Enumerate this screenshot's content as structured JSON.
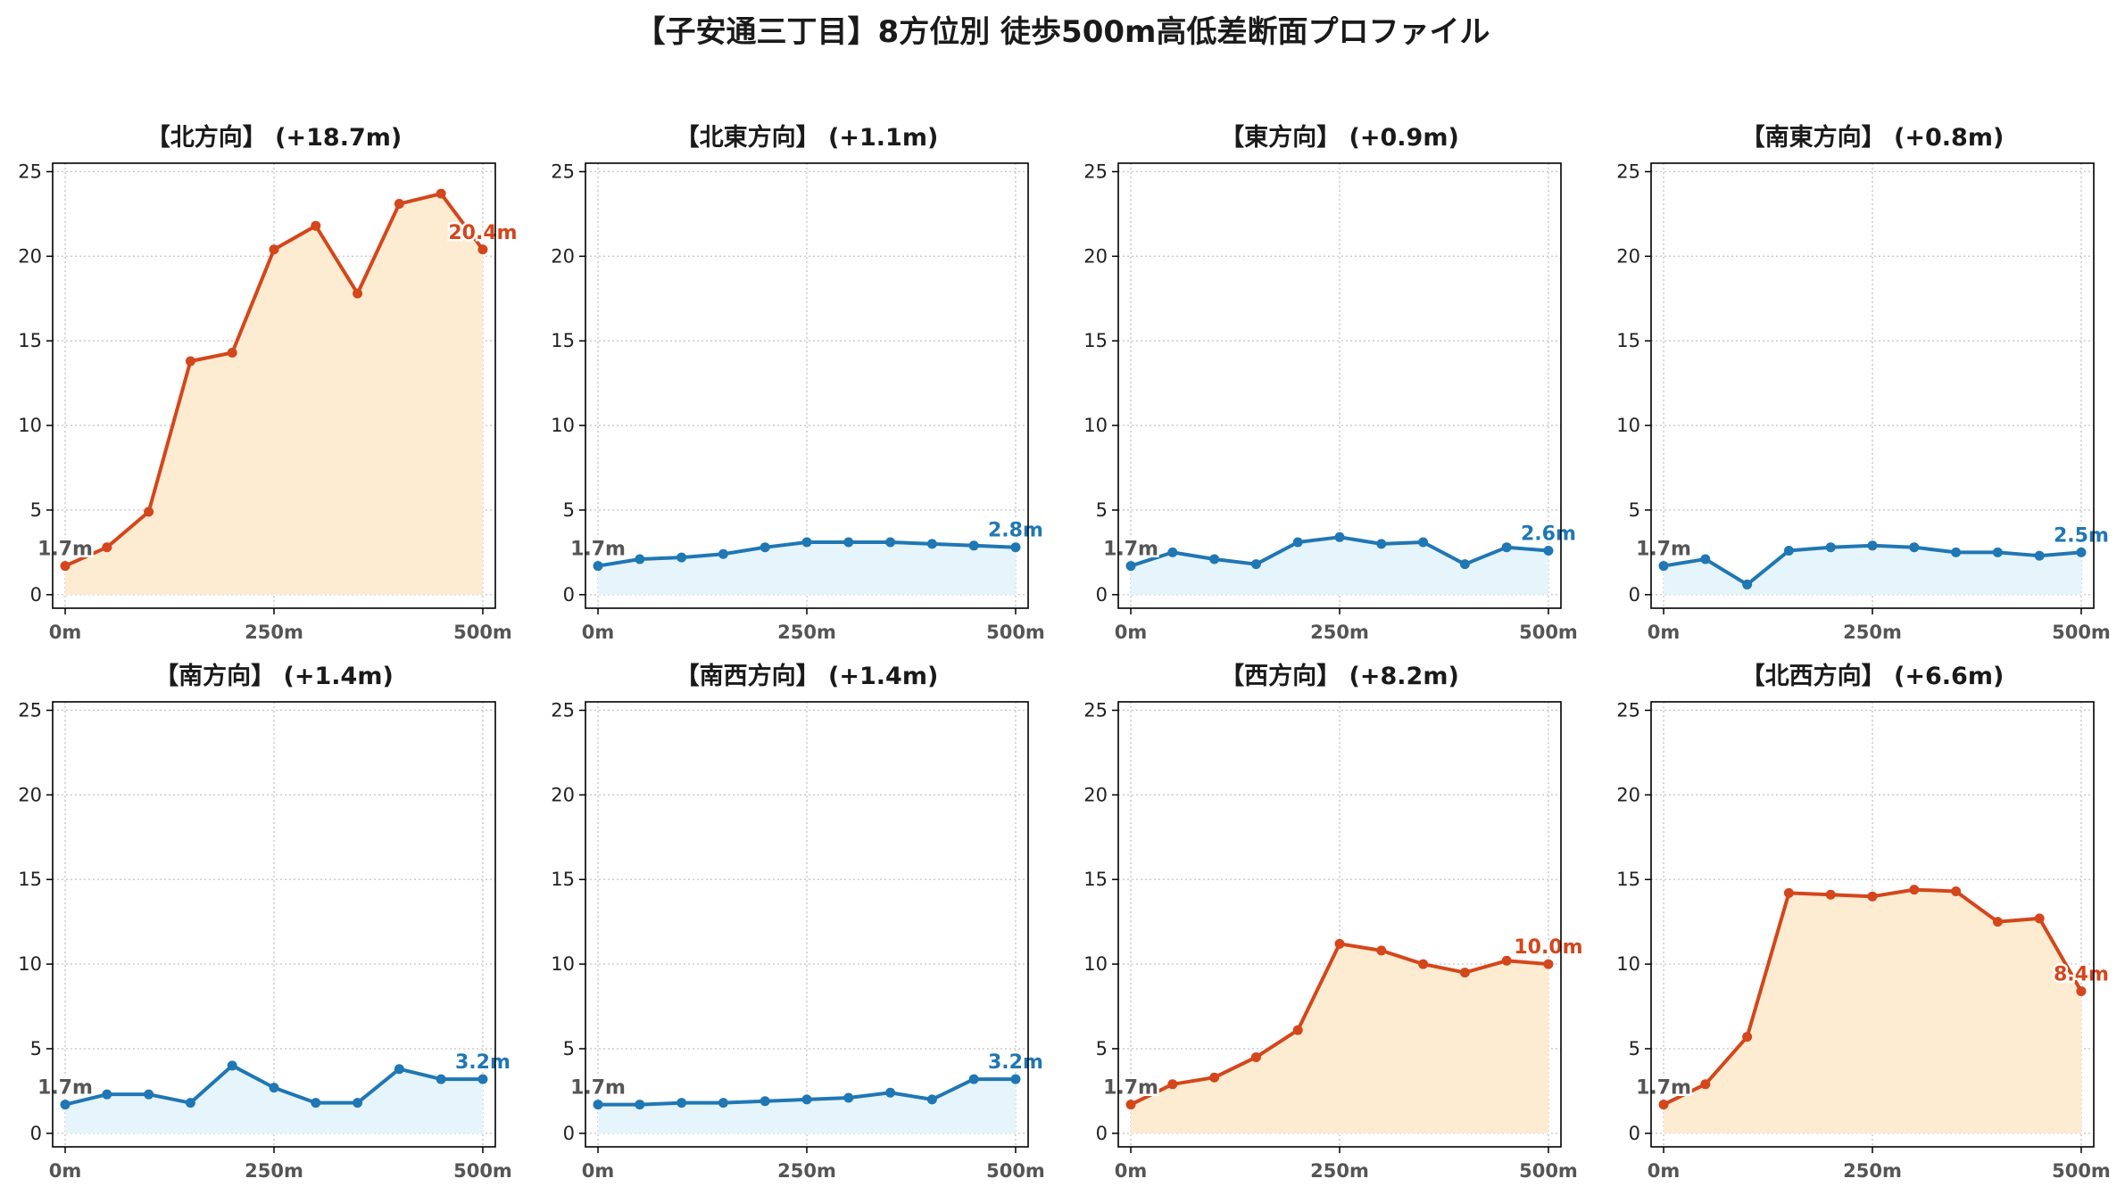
{
  "title": "【子安通三丁目】8方位別 徒歩500m高低差断面プロファイル",
  "colors": {
    "up_line": "#d4461b",
    "up_fill": "#fdecd2",
    "flat_line": "#1f77b4",
    "flat_fill": "#e6f4fb",
    "start_label": "#555555",
    "grid": "#c8c8c8",
    "axis": "#000000"
  },
  "chart_data": [
    {
      "type": "area",
      "title": "【北方向】 (+18.7m)",
      "trend": "up",
      "x": [
        0,
        50,
        100,
        150,
        200,
        250,
        300,
        350,
        400,
        450,
        500
      ],
      "y": [
        1.7,
        2.8,
        4.9,
        13.8,
        14.3,
        20.4,
        21.8,
        17.8,
        23.1,
        23.7,
        20.4
      ],
      "start_label": "1.7m",
      "end_label": "20.4m",
      "xticks": [
        0,
        250,
        500
      ],
      "xtick_labels": [
        "0m",
        "250m",
        "500m"
      ],
      "yticks": [
        0,
        5,
        10,
        15,
        20,
        25
      ],
      "xlim": [
        -15,
        515
      ],
      "ylim": [
        -0.8,
        25.5
      ],
      "grid": true
    },
    {
      "type": "area",
      "title": "【北東方向】 (+1.1m)",
      "trend": "flat",
      "x": [
        0,
        50,
        100,
        150,
        200,
        250,
        300,
        350,
        400,
        450,
        500
      ],
      "y": [
        1.7,
        2.1,
        2.2,
        2.4,
        2.8,
        3.1,
        3.1,
        3.1,
        3.0,
        2.9,
        2.8
      ],
      "start_label": "1.7m",
      "end_label": "2.8m",
      "xticks": [
        0,
        250,
        500
      ],
      "xtick_labels": [
        "0m",
        "250m",
        "500m"
      ],
      "yticks": [
        0,
        5,
        10,
        15,
        20,
        25
      ],
      "xlim": [
        -15,
        515
      ],
      "ylim": [
        -0.8,
        25.5
      ],
      "grid": true
    },
    {
      "type": "area",
      "title": "【東方向】 (+0.9m)",
      "trend": "flat",
      "x": [
        0,
        50,
        100,
        150,
        200,
        250,
        300,
        350,
        400,
        450,
        500
      ],
      "y": [
        1.7,
        2.5,
        2.1,
        1.8,
        3.1,
        3.4,
        3.0,
        3.1,
        1.8,
        2.8,
        2.6
      ],
      "start_label": "1.7m",
      "end_label": "2.6m",
      "xticks": [
        0,
        250,
        500
      ],
      "xtick_labels": [
        "0m",
        "250m",
        "500m"
      ],
      "yticks": [
        0,
        5,
        10,
        15,
        20,
        25
      ],
      "xlim": [
        -15,
        515
      ],
      "ylim": [
        -0.8,
        25.5
      ],
      "grid": true
    },
    {
      "type": "area",
      "title": "【南東方向】 (+0.8m)",
      "trend": "flat",
      "x": [
        0,
        50,
        100,
        150,
        200,
        250,
        300,
        350,
        400,
        450,
        500
      ],
      "y": [
        1.7,
        2.1,
        0.6,
        2.6,
        2.8,
        2.9,
        2.8,
        2.5,
        2.5,
        2.3,
        2.5
      ],
      "start_label": "1.7m",
      "end_label": "2.5m",
      "xticks": [
        0,
        250,
        500
      ],
      "xtick_labels": [
        "0m",
        "250m",
        "500m"
      ],
      "yticks": [
        0,
        5,
        10,
        15,
        20,
        25
      ],
      "xlim": [
        -15,
        515
      ],
      "ylim": [
        -0.8,
        25.5
      ],
      "grid": true
    },
    {
      "type": "area",
      "title": "【南方向】 (+1.4m)",
      "trend": "flat",
      "x": [
        0,
        50,
        100,
        150,
        200,
        250,
        300,
        350,
        400,
        450,
        500
      ],
      "y": [
        1.7,
        2.3,
        2.3,
        1.8,
        4.0,
        2.7,
        1.8,
        1.8,
        3.8,
        3.2,
        3.2
      ],
      "start_label": "1.7m",
      "end_label": "3.2m",
      "xticks": [
        0,
        250,
        500
      ],
      "xtick_labels": [
        "0m",
        "250m",
        "500m"
      ],
      "yticks": [
        0,
        5,
        10,
        15,
        20,
        25
      ],
      "xlim": [
        -15,
        515
      ],
      "ylim": [
        -0.8,
        25.5
      ],
      "grid": true
    },
    {
      "type": "area",
      "title": "【南西方向】 (+1.4m)",
      "trend": "flat",
      "x": [
        0,
        50,
        100,
        150,
        200,
        250,
        300,
        350,
        400,
        450,
        500
      ],
      "y": [
        1.7,
        1.7,
        1.8,
        1.8,
        1.9,
        2.0,
        2.1,
        2.4,
        2.0,
        3.2,
        3.2
      ],
      "start_label": "1.7m",
      "end_label": "3.2m",
      "xticks": [
        0,
        250,
        500
      ],
      "xtick_labels": [
        "0m",
        "250m",
        "500m"
      ],
      "yticks": [
        0,
        5,
        10,
        15,
        20,
        25
      ],
      "xlim": [
        -15,
        515
      ],
      "ylim": [
        -0.8,
        25.5
      ],
      "grid": true
    },
    {
      "type": "area",
      "title": "【西方向】 (+8.2m)",
      "trend": "up",
      "x": [
        0,
        50,
        100,
        150,
        200,
        250,
        300,
        350,
        400,
        450,
        500
      ],
      "y": [
        1.7,
        2.9,
        3.3,
        4.5,
        6.1,
        11.2,
        10.8,
        10.0,
        9.5,
        10.2,
        10.0
      ],
      "start_label": "1.7m",
      "end_label": "10.0m",
      "xticks": [
        0,
        250,
        500
      ],
      "xtick_labels": [
        "0m",
        "250m",
        "500m"
      ],
      "yticks": [
        0,
        5,
        10,
        15,
        20,
        25
      ],
      "xlim": [
        -15,
        515
      ],
      "ylim": [
        -0.8,
        25.5
      ],
      "grid": true
    },
    {
      "type": "area",
      "title": "【北西方向】 (+6.6m)",
      "trend": "up",
      "x": [
        0,
        50,
        100,
        150,
        200,
        250,
        300,
        350,
        400,
        450,
        500
      ],
      "y": [
        1.7,
        2.9,
        5.7,
        14.2,
        14.1,
        14.0,
        14.4,
        14.3,
        12.5,
        12.7,
        8.4
      ],
      "start_label": "1.7m",
      "end_label": "8.4m",
      "xticks": [
        0,
        250,
        500
      ],
      "xtick_labels": [
        "0m",
        "250m",
        "500m"
      ],
      "yticks": [
        0,
        5,
        10,
        15,
        20,
        25
      ],
      "xlim": [
        -15,
        515
      ],
      "ylim": [
        -0.8,
        25.5
      ],
      "grid": true
    }
  ]
}
